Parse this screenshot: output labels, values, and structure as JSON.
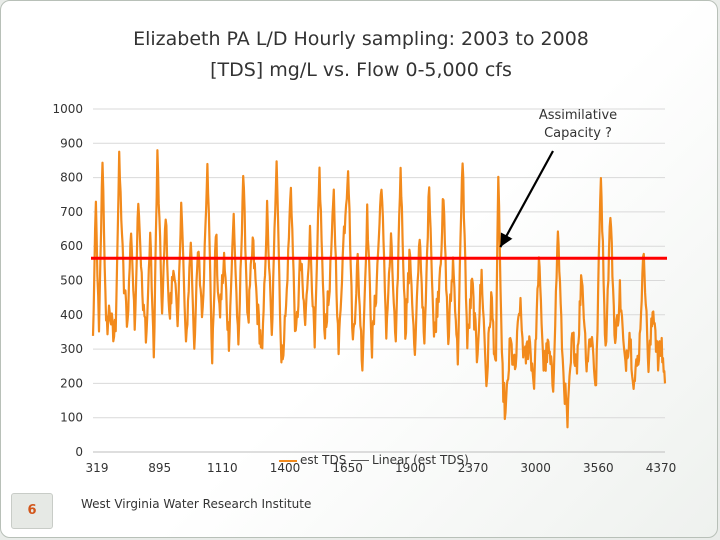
{
  "title_line1": "Elizabeth PA L/D Hourly sampling: 2003 to 2008",
  "title_line2": "[TDS] mg/L vs. Flow 0-5,000 cfs",
  "annotation_line1": "Assimilative",
  "annotation_line2": "Capacity ?",
  "legend": {
    "series_label": "est TDS",
    "trend_label": "Linear (est TDS)"
  },
  "footer": "West Virginia Water Research Institute",
  "page_number": "6",
  "colors": {
    "series": "#f28a1c",
    "threshold": "#ff0000",
    "arrow": "#000000",
    "grid": "#d9d9d9",
    "title": "#333333",
    "page_number": "#d2561b"
  },
  "chart_data": {
    "type": "line",
    "title": "Elizabeth PA L/D Hourly sampling: 2003 to 2008 [TDS] mg/L vs. Flow 0-5,000 cfs",
    "xlabel": "",
    "ylabel": "",
    "x_tick_labels": [
      "319",
      "895",
      "1110",
      "1400",
      "1650",
      "1900",
      "2370",
      "3000",
      "3560",
      "4370"
    ],
    "y_tick_labels": [
      "0",
      "100",
      "200",
      "300",
      "400",
      "500",
      "600",
      "700",
      "800",
      "900",
      "1000"
    ],
    "ylim": [
      0,
      1000
    ],
    "grid": true,
    "legend_position": "bottom",
    "horizontal_line": {
      "value": 565,
      "color": "#ff0000"
    },
    "annotation": {
      "text": "Assimilative Capacity ?",
      "points_to_category_index": 1700,
      "points_to_value": 580
    },
    "category_count": 2400,
    "series": [
      {
        "name": "est TDS",
        "color": "#f28a1c",
        "y_keypoints": [
          [
            0,
            330
          ],
          [
            12,
            720
          ],
          [
            25,
            340
          ],
          [
            40,
            860
          ],
          [
            55,
            350
          ],
          [
            70,
            420
          ],
          [
            85,
            330
          ],
          [
            95,
            370
          ],
          [
            110,
            850
          ],
          [
            130,
            480
          ],
          [
            145,
            380
          ],
          [
            160,
            650
          ],
          [
            175,
            360
          ],
          [
            190,
            750
          ],
          [
            210,
            410
          ],
          [
            225,
            350
          ],
          [
            240,
            640
          ],
          [
            255,
            270
          ],
          [
            270,
            870
          ],
          [
            290,
            400
          ],
          [
            305,
            700
          ],
          [
            320,
            380
          ],
          [
            340,
            560
          ],
          [
            355,
            340
          ],
          [
            370,
            740
          ],
          [
            390,
            300
          ],
          [
            410,
            620
          ],
          [
            425,
            310
          ],
          [
            440,
            580
          ],
          [
            460,
            400
          ],
          [
            480,
            860
          ],
          [
            500,
            260
          ],
          [
            515,
            640
          ],
          [
            530,
            390
          ],
          [
            550,
            560
          ],
          [
            570,
            320
          ],
          [
            590,
            690
          ],
          [
            610,
            290
          ],
          [
            630,
            810
          ],
          [
            650,
            360
          ],
          [
            670,
            610
          ],
          [
            690,
            410
          ],
          [
            710,
            290
          ],
          [
            730,
            710
          ],
          [
            750,
            330
          ],
          [
            770,
            870
          ],
          [
            790,
            250
          ],
          [
            810,
            420
          ],
          [
            830,
            780
          ],
          [
            850,
            310
          ],
          [
            870,
            560
          ],
          [
            890,
            370
          ],
          [
            910,
            640
          ],
          [
            930,
            300
          ],
          [
            950,
            820
          ],
          [
            970,
            360
          ],
          [
            990,
            450
          ],
          [
            1010,
            750
          ],
          [
            1030,
            290
          ],
          [
            1050,
            610
          ],
          [
            1070,
            840
          ],
          [
            1090,
            310
          ],
          [
            1110,
            560
          ],
          [
            1130,
            250
          ],
          [
            1150,
            700
          ],
          [
            1170,
            300
          ],
          [
            1190,
            500
          ],
          [
            1210,
            790
          ],
          [
            1230,
            350
          ],
          [
            1250,
            620
          ],
          [
            1270,
            300
          ],
          [
            1290,
            830
          ],
          [
            1310,
            360
          ],
          [
            1330,
            580
          ],
          [
            1350,
            270
          ],
          [
            1370,
            640
          ],
          [
            1390,
            300
          ],
          [
            1410,
            790
          ],
          [
            1430,
            330
          ],
          [
            1450,
            480
          ],
          [
            1470,
            730
          ],
          [
            1490,
            320
          ],
          [
            1510,
            560
          ],
          [
            1530,
            270
          ],
          [
            1550,
            860
          ],
          [
            1570,
            310
          ],
          [
            1590,
            490
          ],
          [
            1610,
            280
          ],
          [
            1630,
            520
          ],
          [
            1650,
            200
          ],
          [
            1670,
            450
          ],
          [
            1690,
            240
          ],
          [
            1700,
            820
          ],
          [
            1715,
            250
          ],
          [
            1730,
            100
          ],
          [
            1750,
            320
          ],
          [
            1770,
            230
          ],
          [
            1790,
            430
          ],
          [
            1810,
            260
          ],
          [
            1830,
            330
          ],
          [
            1850,
            200
          ],
          [
            1870,
            560
          ],
          [
            1890,
            250
          ],
          [
            1910,
            300
          ],
          [
            1930,
            190
          ],
          [
            1950,
            650
          ],
          [
            1970,
            260
          ],
          [
            1990,
            80
          ],
          [
            2010,
            330
          ],
          [
            2030,
            270
          ],
          [
            2050,
            520
          ],
          [
            2070,
            260
          ],
          [
            2090,
            350
          ],
          [
            2110,
            190
          ],
          [
            2130,
            820
          ],
          [
            2150,
            290
          ],
          [
            2170,
            700
          ],
          [
            2190,
            310
          ],
          [
            2210,
            470
          ],
          [
            2230,
            250
          ],
          [
            2250,
            350
          ],
          [
            2270,
            200
          ],
          [
            2290,
            290
          ],
          [
            2310,
            590
          ],
          [
            2330,
            240
          ],
          [
            2350,
            430
          ],
          [
            2370,
            260
          ],
          [
            2385,
            310
          ],
          [
            2399,
            200
          ]
        ]
      }
    ]
  }
}
